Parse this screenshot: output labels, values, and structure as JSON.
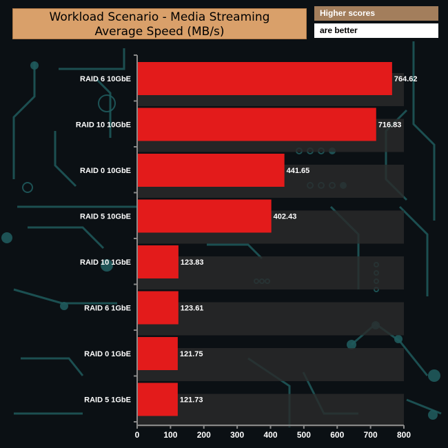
{
  "header": {
    "title_line1": "Workload Scenario - Media Streaming",
    "title_line2": "Average Speed (MB/s)",
    "note_line1": "Higher scores",
    "note_line2": "are better"
  },
  "colors": {
    "bar": "#e31b1b",
    "band": "#2a2a2a",
    "axis": "#8a8a8a",
    "circuit": "#1f5a5c"
  },
  "chart_data": {
    "type": "bar",
    "orientation": "horizontal",
    "title": "Workload Scenario - Media Streaming Average Speed (MB/s)",
    "categories": [
      "RAID 6 10GbE",
      "RAID 10 10GbE",
      "RAID 0 10GbE",
      "RAID 5 10GbE",
      "RAID 10 1GbE",
      "RAID 6 1GbE",
      "RAID 0 1GbE",
      "RAID 5 1GbE"
    ],
    "values": [
      764.62,
      716.83,
      441.65,
      402.43,
      123.83,
      123.61,
      121.75,
      121.73
    ],
    "value_labels": [
      "764.62",
      "716.83",
      "441.65",
      "402.43",
      "123.83",
      "123.61",
      "121.75",
      "121.73"
    ],
    "xlim": [
      0,
      800
    ],
    "xticks": [
      0,
      100,
      200,
      300,
      400,
      500,
      600,
      700,
      800
    ],
    "xlabel": "",
    "ylabel": "",
    "grid": false,
    "legend": "none"
  }
}
